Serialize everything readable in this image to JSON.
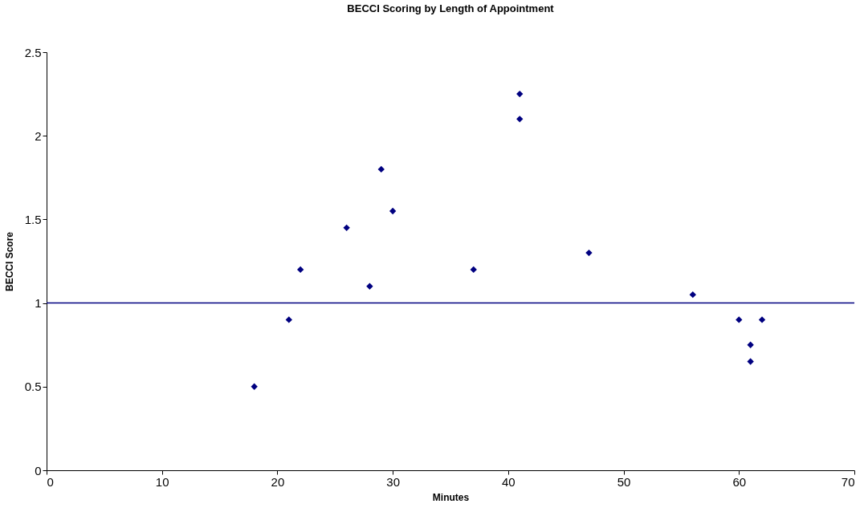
{
  "chart_data": {
    "type": "scatter",
    "title": "BECCI Scoring by Length of Appointment",
    "xlabel": "Minutes",
    "ylabel": "BECCI Score",
    "x": [
      18,
      21,
      22,
      26,
      28,
      29,
      30,
      37,
      41,
      41,
      47,
      56,
      60,
      61,
      61,
      62
    ],
    "series": [
      {
        "color": "#000080",
        "values": [
          0.5,
          0.9,
          1.2,
          1.45,
          1.1,
          1.8,
          1.55,
          1.2,
          2.25,
          2.1,
          1.3,
          1.05,
          0.9,
          0.75,
          0.65,
          0.9
        ]
      }
    ],
    "xlim": [
      0,
      70
    ],
    "xticks": [
      0,
      10,
      20,
      30,
      40,
      50,
      60,
      70
    ],
    "ylim": [
      0,
      2.5
    ],
    "yticks": [
      0,
      0.5,
      1,
      1.5,
      2,
      2.5
    ],
    "ref_lines": [
      {
        "axis": "y",
        "value": 1,
        "color": "#000080"
      }
    ],
    "marker": "diamond",
    "grid": false
  }
}
